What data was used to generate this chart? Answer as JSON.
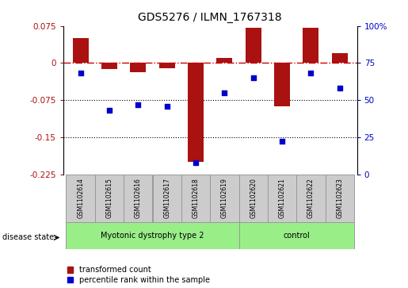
{
  "title": "GDS5276 / ILMN_1767318",
  "samples": [
    "GSM1102614",
    "GSM1102615",
    "GSM1102616",
    "GSM1102617",
    "GSM1102618",
    "GSM1102619",
    "GSM1102620",
    "GSM1102621",
    "GSM1102622",
    "GSM1102623"
  ],
  "transformed_count": [
    0.05,
    -0.012,
    -0.018,
    -0.01,
    -0.2,
    0.01,
    0.072,
    -0.088,
    0.072,
    0.02
  ],
  "percentile_rank": [
    68,
    43,
    47,
    46,
    8,
    55,
    65,
    22,
    68,
    58
  ],
  "left_ylim": [
    -0.225,
    0.075
  ],
  "right_ylim": [
    0,
    100
  ],
  "left_yticks": [
    0.075,
    0,
    -0.075,
    -0.15,
    -0.225
  ],
  "right_yticks": [
    100,
    75,
    50,
    25,
    0
  ],
  "bar_color": "#aa1111",
  "scatter_color": "#0000cc",
  "hline_color": "#cc0000",
  "dotted_line_color": "#000000",
  "group1_label": "Myotonic dystrophy type 2",
  "group2_label": "control",
  "group1_indices": [
    0,
    1,
    2,
    3,
    4,
    5
  ],
  "group2_indices": [
    6,
    7,
    8,
    9
  ],
  "disease_state_label": "disease state",
  "legend_bar_label": "transformed count",
  "legend_scatter_label": "percentile rank within the sample",
  "group_bg_color": "#99ee88",
  "sample_bg_color": "#cccccc",
  "border_color": "#999999"
}
